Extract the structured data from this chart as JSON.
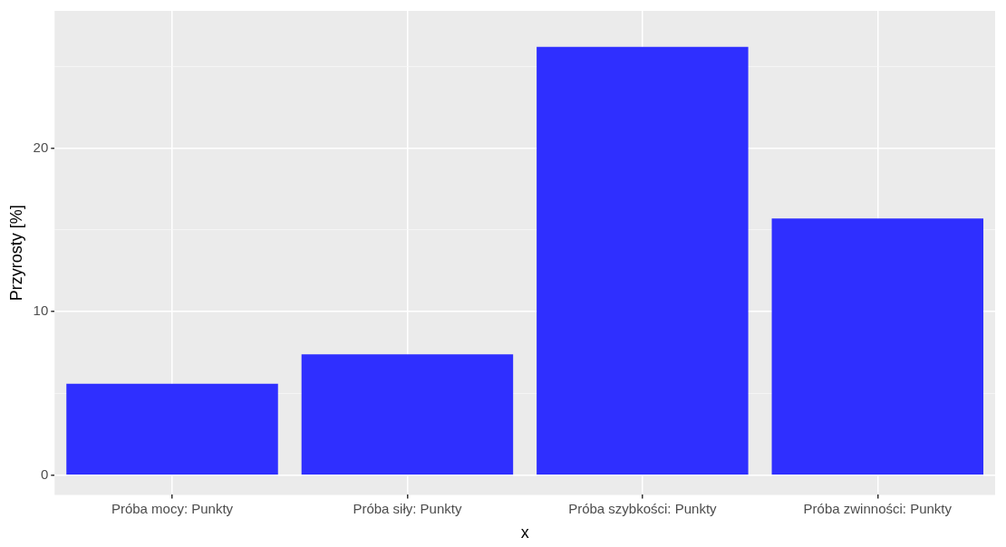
{
  "chart_data": {
    "type": "bar",
    "xlabel": "x",
    "ylabel": "Przyrosty [%]",
    "categories": [
      "Próba mocy: Punkty",
      "Próba siły: Punkty",
      "Próba szybkości: Punkty",
      "Próba zwinności: Punkty"
    ],
    "values": [
      5.6,
      7.4,
      26.2,
      15.7
    ],
    "color": "#2f2fff",
    "ylim": [
      -1.2,
      28.4
    ],
    "yticks": [
      0,
      {
        "value": 5,
        "label": null
      },
      10,
      {
        "value": 15,
        "label": null
      },
      20,
      {
        "value": 25,
        "label": null
      }
    ],
    "grid": true
  }
}
